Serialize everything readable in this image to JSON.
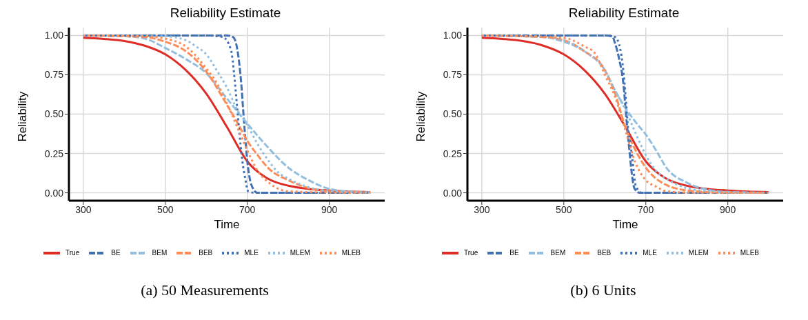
{
  "chart_data": [
    {
      "type": "line",
      "title": "Reliability Estimate",
      "xlabel": "Time",
      "ylabel": "Reliability",
      "annotations": [
        "(a) 50 Measurements"
      ],
      "xlim": [
        265,
        1035
      ],
      "ylim": [
        -0.05,
        1.05
      ],
      "xticks": [
        300,
        500,
        700,
        900
      ],
      "yticks": [
        {
          "value": 0,
          "label": "0.00"
        },
        {
          "value": 0.25,
          "label": "0.25"
        },
        {
          "value": 0.5,
          "label": "0.50"
        },
        {
          "value": 0.75,
          "label": "0.75"
        },
        {
          "value": 1,
          "label": "1.00"
        }
      ],
      "grid": true,
      "legend": "bottom",
      "series": [
        {
          "name": "True",
          "color": "#de2d26",
          "line_style": "solid",
          "x": [
            300,
            350,
            400,
            450,
            500,
            550,
            600,
            650,
            700,
            750,
            800,
            850,
            900,
            950,
            1000
          ],
          "values": [
            0.985,
            0.978,
            0.965,
            0.935,
            0.88,
            0.78,
            0.63,
            0.42,
            0.2,
            0.09,
            0.045,
            0.025,
            0.015,
            0.008,
            0.005
          ]
        },
        {
          "name": "BE",
          "color": "#4271b3",
          "line_style": "dashed",
          "x": [
            300,
            600,
            650,
            665,
            675,
            685,
            692,
            700,
            710,
            725,
            800,
            1000
          ],
          "values": [
            1,
            1,
            1,
            0.99,
            0.92,
            0.7,
            0.45,
            0.2,
            0.05,
            0,
            0,
            0
          ]
        },
        {
          "name": "BEM",
          "color": "#92bfdf",
          "line_style": "dashed",
          "x": [
            300,
            400,
            450,
            500,
            550,
            600,
            650,
            700,
            750,
            800,
            850,
            900,
            950,
            1000
          ],
          "values": [
            1,
            0.995,
            0.98,
            0.92,
            0.85,
            0.76,
            0.6,
            0.44,
            0.29,
            0.16,
            0.08,
            0.025,
            0.008,
            0.003
          ]
        },
        {
          "name": "BEB",
          "color": "#fc8d59",
          "line_style": "dashed",
          "x": [
            300,
            450,
            500,
            550,
            600,
            650,
            675,
            700,
            725,
            750,
            800,
            850,
            900,
            1000
          ],
          "values": [
            1,
            0.99,
            0.96,
            0.9,
            0.77,
            0.56,
            0.45,
            0.33,
            0.24,
            0.16,
            0.08,
            0.03,
            0.01,
            0.002
          ]
        },
        {
          "name": "MLE",
          "color": "#4271b3",
          "line_style": "dotted",
          "x": [
            305,
            600,
            640,
            660,
            668,
            675,
            680,
            688,
            695,
            702,
            720,
            995
          ],
          "values": [
            1,
            1,
            0.99,
            0.91,
            0.75,
            0.55,
            0.4,
            0.2,
            0.09,
            0.01,
            0,
            0
          ]
        },
        {
          "name": "MLEM",
          "color": "#92bfdf",
          "line_style": "dotted",
          "x": [
            300,
            500,
            550,
            575,
            600,
            625,
            650,
            675,
            700,
            725,
            750,
            775,
            800,
            850,
            900,
            990
          ],
          "values": [
            1,
            0.995,
            0.97,
            0.93,
            0.88,
            0.78,
            0.67,
            0.53,
            0.43,
            0.31,
            0.21,
            0.13,
            0.09,
            0.035,
            0.012,
            0.002
          ]
        },
        {
          "name": "MLEB",
          "color": "#fc8d59",
          "line_style": "dotted",
          "x": [
            300,
            450,
            500,
            550,
            600,
            625,
            650,
            675,
            700,
            725,
            750,
            800,
            900,
            985
          ],
          "values": [
            1,
            0.995,
            0.98,
            0.93,
            0.79,
            0.7,
            0.57,
            0.42,
            0.27,
            0.14,
            0.07,
            0.01,
            0.002,
            0
          ]
        }
      ]
    },
    {
      "type": "line",
      "title": "Reliability Estimate",
      "xlabel": "Time",
      "ylabel": "Reliability",
      "annotations": [
        "(b) 6 Units"
      ],
      "xlim": [
        265,
        1035
      ],
      "ylim": [
        -0.05,
        1.05
      ],
      "xticks": [
        300,
        500,
        700,
        900
      ],
      "yticks": [
        {
          "value": 0,
          "label": "0.00"
        },
        {
          "value": 0.25,
          "label": "0.25"
        },
        {
          "value": 0.5,
          "label": "0.50"
        },
        {
          "value": 0.75,
          "label": "0.75"
        },
        {
          "value": 1,
          "label": "1.00"
        }
      ],
      "grid": true,
      "legend": "bottom",
      "series": [
        {
          "name": "True",
          "color": "#de2d26",
          "line_style": "solid",
          "x": [
            300,
            350,
            400,
            450,
            500,
            550,
            600,
            650,
            700,
            750,
            800,
            850,
            900,
            950,
            1000
          ],
          "values": [
            0.985,
            0.978,
            0.965,
            0.935,
            0.88,
            0.78,
            0.63,
            0.42,
            0.2,
            0.09,
            0.045,
            0.025,
            0.015,
            0.008,
            0.005
          ]
        },
        {
          "name": "BE",
          "color": "#4271b3",
          "line_style": "dashed",
          "x": [
            300,
            600,
            618,
            625,
            635,
            645,
            653,
            660,
            666,
            672,
            685,
            1000
          ],
          "values": [
            1,
            1,
            0.995,
            0.95,
            0.85,
            0.7,
            0.46,
            0.27,
            0.12,
            0.03,
            0,
            0
          ]
        },
        {
          "name": "BEM",
          "color": "#92bfdf",
          "line_style": "dashed",
          "x": [
            300,
            450,
            500,
            550,
            600,
            625,
            650,
            675,
            700,
            725,
            750,
            800,
            850,
            900,
            1000
          ],
          "values": [
            1,
            0.99,
            0.96,
            0.9,
            0.78,
            0.65,
            0.54,
            0.45,
            0.37,
            0.27,
            0.16,
            0.065,
            0.02,
            0.006,
            0.001
          ]
        },
        {
          "name": "BEB",
          "color": "#fc8d59",
          "line_style": "dashed",
          "x": [
            300,
            450,
            500,
            550,
            600,
            625,
            650,
            675,
            700,
            725,
            750,
            800,
            850,
            900,
            1000
          ],
          "values": [
            1,
            0.99,
            0.97,
            0.9,
            0.78,
            0.63,
            0.42,
            0.27,
            0.16,
            0.09,
            0.05,
            0.015,
            0.005,
            0.002,
            0
          ]
        },
        {
          "name": "MLE",
          "color": "#4271b3",
          "line_style": "dotted",
          "x": [
            305,
            600,
            625,
            638,
            648,
            652,
            656,
            662,
            667,
            675,
            690,
            995
          ],
          "values": [
            1,
            1,
            0.99,
            0.91,
            0.7,
            0.57,
            0.43,
            0.32,
            0.22,
            0.05,
            0,
            0
          ]
        },
        {
          "name": "MLEM",
          "color": "#92bfdf",
          "line_style": "dotted",
          "x": [
            300,
            450,
            500,
            550,
            600,
            625,
            650,
            675,
            700,
            725,
            750,
            800,
            850,
            900,
            990
          ],
          "values": [
            1,
            0.99,
            0.97,
            0.9,
            0.78,
            0.65,
            0.53,
            0.38,
            0.24,
            0.14,
            0.09,
            0.03,
            0.01,
            0.003,
            0
          ]
        },
        {
          "name": "MLEB",
          "color": "#fc8d59",
          "line_style": "dotted",
          "x": [
            300,
            500,
            550,
            575,
            600,
            625,
            650,
            675,
            700,
            725,
            750,
            800,
            985
          ],
          "values": [
            1,
            0.985,
            0.93,
            0.89,
            0.75,
            0.61,
            0.4,
            0.19,
            0.08,
            0.04,
            0.01,
            0.002,
            0
          ]
        }
      ]
    }
  ]
}
